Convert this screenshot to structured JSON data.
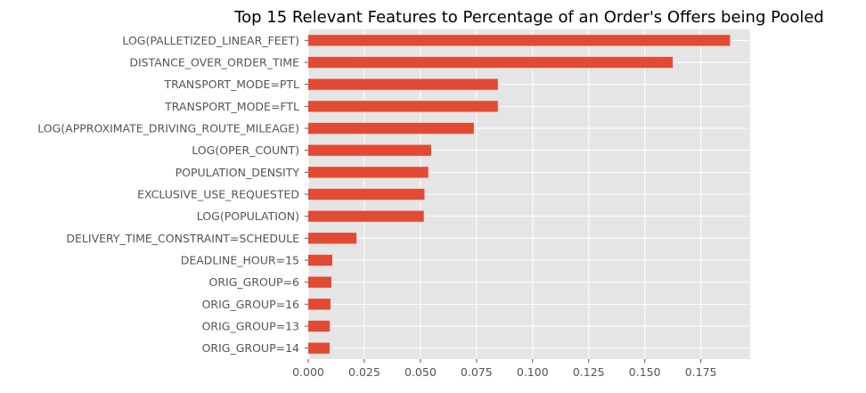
{
  "chart_data": {
    "type": "bar",
    "orientation": "horizontal",
    "title": "Top 15 Relevant Features to Percentage of an Order's Offers being Pooled",
    "xlabel": "",
    "ylabel": "",
    "xlim": [
      0,
      0.197
    ],
    "grid": true,
    "legend": "none",
    "style": "ggplot",
    "colors": {
      "bar": "#E24A33",
      "plot_background": "#E5E5E5",
      "grid": "#FFFFFF",
      "tick_text": "#555555",
      "title_text": "#000000"
    },
    "x_ticks": [
      "0.000",
      "0.025",
      "0.050",
      "0.075",
      "0.100",
      "0.125",
      "0.150",
      "0.175"
    ],
    "x_tick_values": [
      0,
      0.025,
      0.05,
      0.075,
      0.1,
      0.125,
      0.15,
      0.175
    ],
    "categories": [
      "LOG(PALLETIZED_LINEAR_FEET)",
      "DISTANCE_OVER_ORDER_TIME",
      "TRANSPORT_MODE=PTL",
      "TRANSPORT_MODE=FTL",
      "LOG(APPROXIMATE_DRIVING_ROUTE_MILEAGE)",
      "LOG(OPER_COUNT)",
      "POPULATION_DENSITY",
      "EXCLUSIVE_USE_REQUESTED",
      "LOG(POPULATION)",
      "DELIVERY_TIME_CONSTRAINT=SCHEDULE",
      "DEADLINE_HOUR=15",
      "ORIG_GROUP=6",
      "ORIG_GROUP=16",
      "ORIG_GROUP=13",
      "ORIG_GROUP=14"
    ],
    "values": [
      0.188,
      0.1625,
      0.0845,
      0.0845,
      0.0738,
      0.0548,
      0.0535,
      0.0518,
      0.0515,
      0.0215,
      0.0107,
      0.0103,
      0.0099,
      0.0096,
      0.0095
    ]
  }
}
